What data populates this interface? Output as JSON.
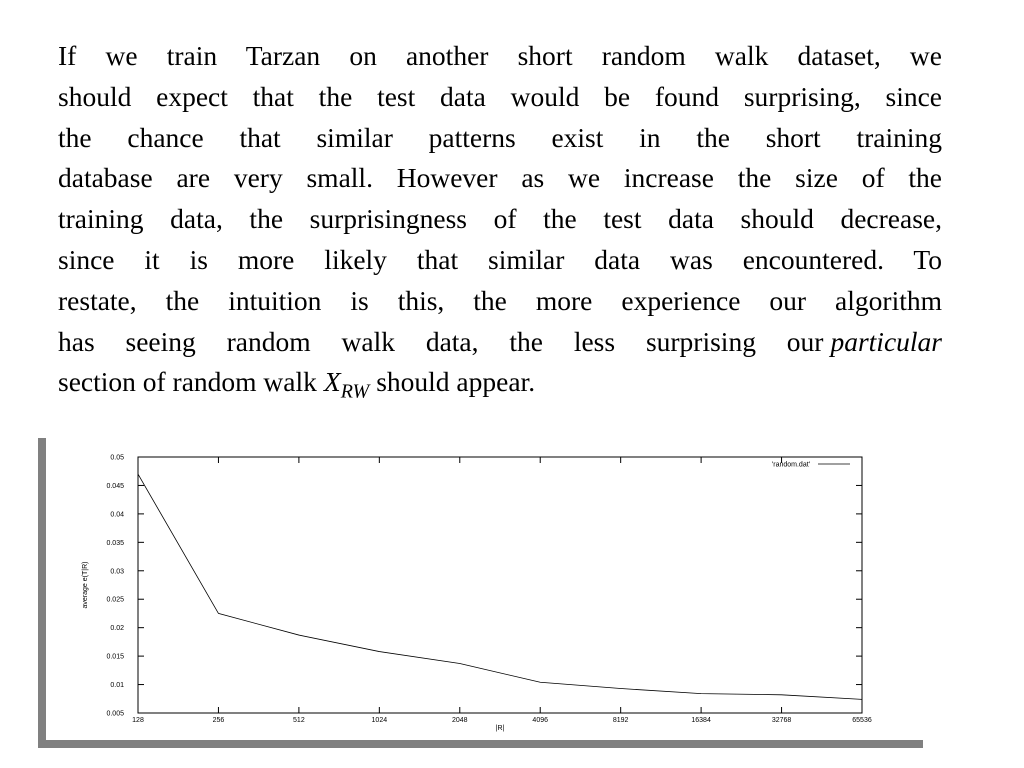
{
  "paragraph": {
    "lines": [
      "If we train Tarzan on another short random walk dataset, we",
      "should expect that the test data would be found surprising, since",
      "the chance that similar patterns exist in the short training",
      "database are very small. However as we increase the size of the",
      "training data, the surprisingness of the test data should decrease,",
      "since it is more likely that similar data was encountered. To",
      "restate, the intuition is this, the more experience our algorithm"
    ],
    "line8": {
      "text": "has seeing random walk data, the less surprising our",
      "emphasis": "particular"
    },
    "line9": {
      "text": "section of random walk",
      "variable": "X",
      "subscript": "RW",
      "tail": "should appear."
    }
  },
  "chart_data": {
    "type": "line",
    "x": [
      128,
      256,
      512,
      1024,
      2048,
      4096,
      8192,
      16384,
      32768,
      65536
    ],
    "series": [
      {
        "name": "'random.dat'",
        "color": "#000000",
        "values": [
          0.047,
          0.0225,
          0.0187,
          0.0158,
          0.0137,
          0.0104,
          0.0093,
          0.0084,
          0.0082,
          0.0074
        ]
      }
    ],
    "xlim": [
      128,
      65536
    ],
    "xticks": [
      128,
      256,
      512,
      1024,
      2048,
      4096,
      8192,
      16384,
      32768,
      65536
    ],
    "ylim": [
      0.005,
      0.05
    ],
    "yticks": [
      0.005,
      0.01,
      0.015,
      0.02,
      0.025,
      0.03,
      0.035,
      0.04,
      0.045,
      0.05
    ],
    "xscale": "log",
    "x_label": "|R|",
    "y_label": "average e(T|R)",
    "legend": "upper right"
  }
}
